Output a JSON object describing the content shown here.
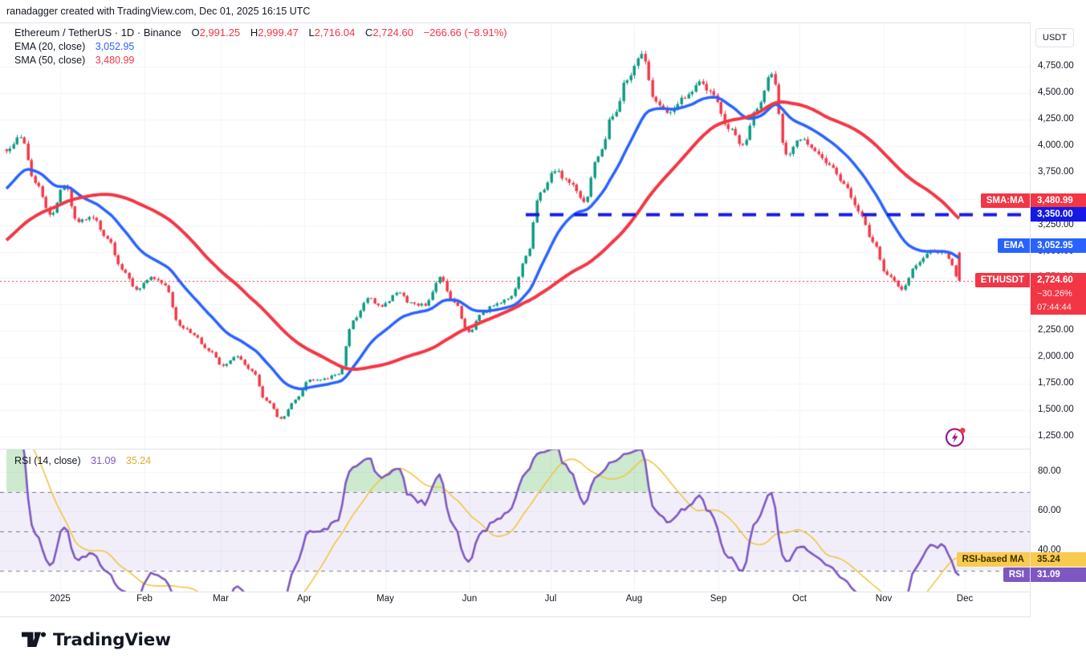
{
  "attribution": "ranadagger created with TradingView.com, Dec 01, 2025 16:15 UTC",
  "symbol_legend": {
    "title": "Ethereum / TetherUS · 1D · Binance",
    "o_label": "O",
    "o": "2,991.25",
    "h_label": "H",
    "h": "2,999.47",
    "l_label": "L",
    "l": "2,716.04",
    "c_label": "C",
    "c": "2,724.60",
    "change": "−266.66 (−8.91%)"
  },
  "ema_legend": {
    "label": "EMA (20, close)",
    "value": "3,052.95"
  },
  "sma_legend": {
    "label": "SMA (50, close)",
    "value": "3,480.99"
  },
  "rsi_legend": {
    "label": "RSI (14, close)",
    "rsi_value": "31.09",
    "ma_value": "35.24"
  },
  "price_axis": {
    "currency_button": "USDT",
    "ticks": [
      "4,750.00",
      "4,500.00",
      "4,250.00",
      "4,000.00",
      "3,750.00",
      "3,500.00",
      "3,250.00",
      "3,000.00",
      "2,750.00",
      "2,500.00",
      "2,250.00",
      "2,000.00",
      "1,750.00",
      "1,500.00",
      "1,250.00"
    ],
    "tick_values": [
      4750,
      4500,
      4250,
      4000,
      3750,
      3500,
      3250,
      3000,
      2750,
      2500,
      2250,
      2000,
      1750,
      1500,
      1250
    ]
  },
  "rsi_axis": {
    "ticks": [
      "80.00",
      "60.00",
      "40.00"
    ],
    "tick_values": [
      80,
      60,
      40
    ]
  },
  "time_axis": {
    "labels": [
      "2025",
      "Feb",
      "Mar",
      "Apr",
      "May",
      "Jun",
      "Jul",
      "Aug",
      "Sep",
      "Oct",
      "Nov",
      "Dec"
    ]
  },
  "price_labels": {
    "sma": {
      "tag": "SMA:MA",
      "value": "3,480.99",
      "price": 3480.99
    },
    "level": {
      "value": "3,350.00",
      "price": 3350
    },
    "ema": {
      "tag": "EMA",
      "value": "3,052.95",
      "price": 3052.95
    },
    "last": {
      "tag": "ETHUSDT",
      "value": "2,724.60",
      "pct": "−30.26%",
      "countdown": "07:44:44",
      "price": 2724.6
    }
  },
  "rsi_labels": {
    "ma": {
      "tag": "RSI-based MA",
      "value": "35.24"
    },
    "rsi": {
      "tag": "RSI",
      "value": "31.09"
    }
  },
  "footer_logo_text": "TradingView",
  "colors": {
    "up": "#089981",
    "down": "#f23645",
    "ema": "#2962ff",
    "sma": "#f23645",
    "level_line": "#1519e6",
    "last_price_line": "#f23645",
    "rsi": "#7e57c2",
    "rsi_ma": "#eec643",
    "rsi_band_fill": "rgba(126,87,194,0.10)",
    "rsi_overbought_fill": "rgba(76,175,80,0.28)",
    "grid": "#f0f3fa",
    "border": "#e0e3eb",
    "text": "#131722"
  },
  "chart_data": {
    "type": "candlestick",
    "symbol": "ETHUSDT",
    "exchange": "Binance",
    "timeframe": "1D",
    "title": "Ethereum / TetherUS · 1D · Binance",
    "ylim": [
      1130,
      5170
    ],
    "price_gridline_step": 250,
    "x_range_note": "mid-Dec 2024 through Dec 01 2025, daily candles",
    "anchor_note": "approximate weekly closes read from the chart",
    "close_anchors": [
      3950,
      4080,
      3650,
      3350,
      3620,
      3280,
      3320,
      3120,
      2830,
      2640,
      2760,
      2680,
      2300,
      2210,
      2060,
      1920,
      2010,
      1870,
      1590,
      1420,
      1600,
      1790,
      1800,
      1840,
      2350,
      2560,
      2480,
      2610,
      2520,
      2490,
      2760,
      2520,
      2240,
      2430,
      2510,
      2580,
      2960,
      3560,
      3760,
      3650,
      3470,
      3900,
      4280,
      4620,
      4870,
      4420,
      4320,
      4450,
      4610,
      4480,
      4160,
      4010,
      4350,
      4680,
      3920,
      4060,
      3950,
      3820,
      3640,
      3380,
      3090,
      2780,
      2640,
      2870,
      3010,
      2990,
      2724.6
    ],
    "last_candle": {
      "open": 2991.25,
      "high": 2999.47,
      "low": 2716.04,
      "close": 2724.6
    },
    "levels": {
      "horizontal_dashed_blue": 3350,
      "last_price_dotted_red": 2724.6
    },
    "indicators": [
      {
        "name": "EMA",
        "period": 20,
        "source": "close",
        "value": 3052.95
      },
      {
        "name": "SMA",
        "period": 50,
        "source": "close",
        "value": 3480.99
      },
      {
        "name": "RSI",
        "period": 14,
        "source": "close",
        "value": 31.09,
        "ma_value": 35.24,
        "overbought": 70,
        "mid": 50,
        "oversold": 30,
        "pane_ticks": [
          80,
          60,
          40
        ]
      }
    ]
  }
}
